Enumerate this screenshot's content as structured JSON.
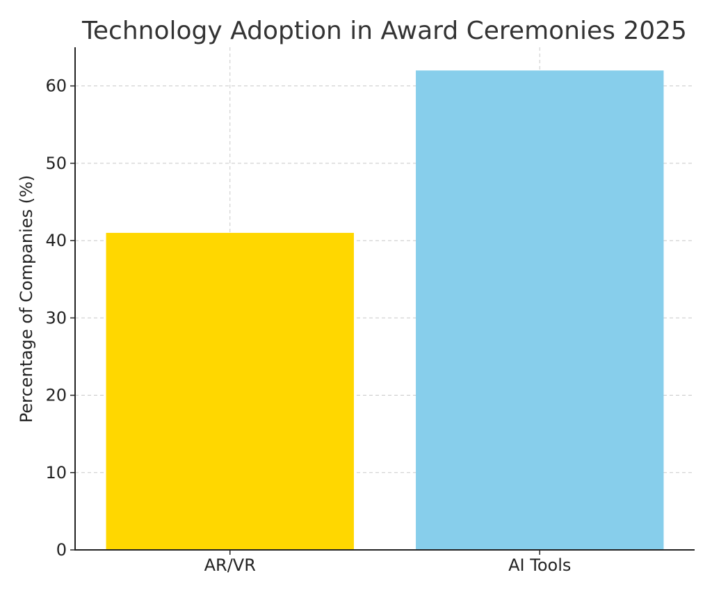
{
  "chart_data": {
    "type": "bar",
    "title": "Technology Adoption in Award Ceremonies 2025",
    "xlabel": "",
    "ylabel": "Percentage of Companies (%)",
    "categories": [
      "AR/VR",
      "AI Tools"
    ],
    "values": [
      41,
      62
    ],
    "colors": [
      "#FFD700",
      "#87CEEB"
    ],
    "ylim": [
      0,
      65
    ],
    "yticks": [
      0,
      10,
      20,
      30,
      40,
      50,
      60
    ],
    "grid": true
  }
}
